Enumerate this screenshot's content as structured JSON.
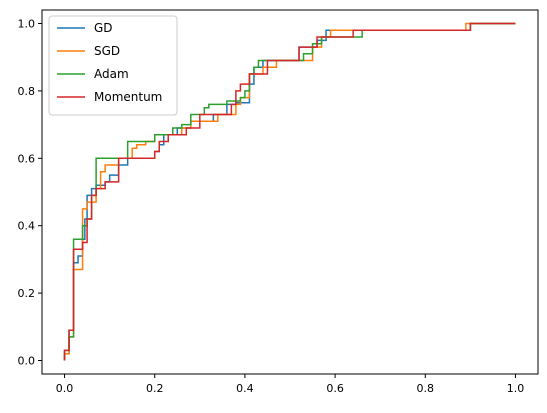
{
  "chart_data": {
    "type": "line",
    "step": true,
    "title": "",
    "xlabel": "",
    "ylabel": "",
    "xlim": [
      -0.05,
      1.05
    ],
    "ylim": [
      -0.04,
      1.04
    ],
    "xticks": [
      0.0,
      0.2,
      0.4,
      0.6,
      0.8,
      1.0
    ],
    "yticks": [
      0.0,
      0.2,
      0.4,
      0.6,
      0.8,
      1.0
    ],
    "xtick_labels": [
      "0.0",
      "0.2",
      "0.4",
      "0.6",
      "0.8",
      "1.0"
    ],
    "ytick_labels": [
      "0.0",
      "0.2",
      "0.4",
      "0.6",
      "0.8",
      "1.0"
    ],
    "grid": false,
    "legend_position": "top-left",
    "series": [
      {
        "name": "GD",
        "color": "#1f77b4",
        "points": [
          [
            0,
            0
          ],
          [
            0,
            0.02
          ],
          [
            0.01,
            0.02
          ],
          [
            0.01,
            0.09
          ],
          [
            0.02,
            0.09
          ],
          [
            0.02,
            0.29
          ],
          [
            0.03,
            0.29
          ],
          [
            0.03,
            0.31
          ],
          [
            0.04,
            0.31
          ],
          [
            0.04,
            0.36
          ],
          [
            0.045,
            0.36
          ],
          [
            0.045,
            0.42
          ],
          [
            0.05,
            0.42
          ],
          [
            0.05,
            0.49
          ],
          [
            0.06,
            0.49
          ],
          [
            0.06,
            0.51
          ],
          [
            0.07,
            0.51
          ],
          [
            0.07,
            0.52
          ],
          [
            0.09,
            0.52
          ],
          [
            0.09,
            0.53
          ],
          [
            0.1,
            0.53
          ],
          [
            0.1,
            0.55
          ],
          [
            0.12,
            0.55
          ],
          [
            0.12,
            0.58
          ],
          [
            0.14,
            0.58
          ],
          [
            0.14,
            0.6
          ],
          [
            0.2,
            0.6
          ],
          [
            0.2,
            0.62
          ],
          [
            0.21,
            0.62
          ],
          [
            0.21,
            0.64
          ],
          [
            0.22,
            0.64
          ],
          [
            0.22,
            0.67
          ],
          [
            0.25,
            0.67
          ],
          [
            0.25,
            0.69
          ],
          [
            0.28,
            0.69
          ],
          [
            0.28,
            0.71
          ],
          [
            0.33,
            0.71
          ],
          [
            0.33,
            0.73
          ],
          [
            0.36,
            0.73
          ],
          [
            0.36,
            0.76
          ],
          [
            0.38,
            0.76
          ],
          [
            0.38,
            0.765
          ],
          [
            0.41,
            0.765
          ],
          [
            0.41,
            0.82
          ],
          [
            0.42,
            0.82
          ],
          [
            0.42,
            0.87
          ],
          [
            0.44,
            0.87
          ],
          [
            0.44,
            0.89
          ],
          [
            0.52,
            0.89
          ],
          [
            0.52,
            0.93
          ],
          [
            0.56,
            0.93
          ],
          [
            0.56,
            0.95
          ],
          [
            0.58,
            0.95
          ],
          [
            0.58,
            0.98
          ],
          [
            0.9,
            0.98
          ],
          [
            0.9,
            1.0
          ],
          [
            1.0,
            1.0
          ]
        ]
      },
      {
        "name": "SGD",
        "color": "#ff7f0e",
        "points": [
          [
            0,
            0
          ],
          [
            0,
            0.02
          ],
          [
            0.01,
            0.02
          ],
          [
            0.01,
            0.07
          ],
          [
            0.02,
            0.07
          ],
          [
            0.02,
            0.27
          ],
          [
            0.04,
            0.27
          ],
          [
            0.04,
            0.45
          ],
          [
            0.05,
            0.45
          ],
          [
            0.05,
            0.47
          ],
          [
            0.07,
            0.47
          ],
          [
            0.07,
            0.51
          ],
          [
            0.08,
            0.51
          ],
          [
            0.08,
            0.56
          ],
          [
            0.09,
            0.56
          ],
          [
            0.09,
            0.58
          ],
          [
            0.12,
            0.58
          ],
          [
            0.12,
            0.6
          ],
          [
            0.15,
            0.6
          ],
          [
            0.15,
            0.63
          ],
          [
            0.16,
            0.63
          ],
          [
            0.16,
            0.64
          ],
          [
            0.18,
            0.64
          ],
          [
            0.18,
            0.65
          ],
          [
            0.2,
            0.65
          ],
          [
            0.2,
            0.67
          ],
          [
            0.26,
            0.67
          ],
          [
            0.26,
            0.69
          ],
          [
            0.28,
            0.69
          ],
          [
            0.28,
            0.71
          ],
          [
            0.34,
            0.71
          ],
          [
            0.34,
            0.73
          ],
          [
            0.38,
            0.73
          ],
          [
            0.38,
            0.76
          ],
          [
            0.39,
            0.76
          ],
          [
            0.39,
            0.78
          ],
          [
            0.41,
            0.78
          ],
          [
            0.41,
            0.85
          ],
          [
            0.44,
            0.85
          ],
          [
            0.44,
            0.87
          ],
          [
            0.47,
            0.87
          ],
          [
            0.47,
            0.89
          ],
          [
            0.55,
            0.89
          ],
          [
            0.55,
            0.93
          ],
          [
            0.57,
            0.93
          ],
          [
            0.57,
            0.96
          ],
          [
            0.59,
            0.96
          ],
          [
            0.59,
            0.98
          ],
          [
            0.89,
            0.98
          ],
          [
            0.89,
            1.0
          ],
          [
            1.0,
            1.0
          ]
        ]
      },
      {
        "name": "Adam",
        "color": "#2ca02c",
        "points": [
          [
            0,
            0
          ],
          [
            0,
            0.03
          ],
          [
            0.01,
            0.03
          ],
          [
            0.01,
            0.07
          ],
          [
            0.02,
            0.07
          ],
          [
            0.02,
            0.36
          ],
          [
            0.04,
            0.36
          ],
          [
            0.04,
            0.4
          ],
          [
            0.05,
            0.4
          ],
          [
            0.05,
            0.42
          ],
          [
            0.06,
            0.42
          ],
          [
            0.06,
            0.49
          ],
          [
            0.07,
            0.49
          ],
          [
            0.07,
            0.51
          ],
          [
            0.07,
            0.51
          ],
          [
            0.07,
            0.6
          ],
          [
            0.14,
            0.6
          ],
          [
            0.14,
            0.65
          ],
          [
            0.2,
            0.65
          ],
          [
            0.2,
            0.67
          ],
          [
            0.24,
            0.67
          ],
          [
            0.24,
            0.69
          ],
          [
            0.26,
            0.69
          ],
          [
            0.26,
            0.7
          ],
          [
            0.28,
            0.7
          ],
          [
            0.28,
            0.73
          ],
          [
            0.31,
            0.73
          ],
          [
            0.31,
            0.75
          ],
          [
            0.32,
            0.75
          ],
          [
            0.32,
            0.76
          ],
          [
            0.36,
            0.76
          ],
          [
            0.36,
            0.77
          ],
          [
            0.39,
            0.77
          ],
          [
            0.39,
            0.78
          ],
          [
            0.4,
            0.78
          ],
          [
            0.4,
            0.8
          ],
          [
            0.41,
            0.8
          ],
          [
            0.41,
            0.85
          ],
          [
            0.42,
            0.85
          ],
          [
            0.42,
            0.87
          ],
          [
            0.43,
            0.87
          ],
          [
            0.43,
            0.89
          ],
          [
            0.53,
            0.89
          ],
          [
            0.53,
            0.91
          ],
          [
            0.55,
            0.91
          ],
          [
            0.55,
            0.94
          ],
          [
            0.57,
            0.94
          ],
          [
            0.57,
            0.96
          ],
          [
            0.66,
            0.96
          ],
          [
            0.66,
            0.98
          ],
          [
            0.9,
            0.98
          ],
          [
            0.9,
            1.0
          ],
          [
            1.0,
            1.0
          ]
        ]
      },
      {
        "name": "Momentum",
        "color": "#d62728",
        "points": [
          [
            0,
            0
          ],
          [
            0,
            0.03
          ],
          [
            0.01,
            0.03
          ],
          [
            0.01,
            0.09
          ],
          [
            0.02,
            0.09
          ],
          [
            0.02,
            0.33
          ],
          [
            0.04,
            0.33
          ],
          [
            0.04,
            0.35
          ],
          [
            0.05,
            0.35
          ],
          [
            0.05,
            0.42
          ],
          [
            0.06,
            0.42
          ],
          [
            0.06,
            0.49
          ],
          [
            0.07,
            0.49
          ],
          [
            0.07,
            0.51
          ],
          [
            0.09,
            0.51
          ],
          [
            0.09,
            0.53
          ],
          [
            0.12,
            0.53
          ],
          [
            0.12,
            0.6
          ],
          [
            0.2,
            0.6
          ],
          [
            0.2,
            0.62
          ],
          [
            0.21,
            0.62
          ],
          [
            0.21,
            0.65
          ],
          [
            0.23,
            0.65
          ],
          [
            0.23,
            0.67
          ],
          [
            0.27,
            0.67
          ],
          [
            0.27,
            0.69
          ],
          [
            0.3,
            0.69
          ],
          [
            0.3,
            0.73
          ],
          [
            0.37,
            0.73
          ],
          [
            0.37,
            0.76
          ],
          [
            0.38,
            0.76
          ],
          [
            0.38,
            0.8
          ],
          [
            0.39,
            0.8
          ],
          [
            0.39,
            0.82
          ],
          [
            0.41,
            0.82
          ],
          [
            0.41,
            0.85
          ],
          [
            0.45,
            0.85
          ],
          [
            0.45,
            0.89
          ],
          [
            0.52,
            0.89
          ],
          [
            0.52,
            0.93
          ],
          [
            0.56,
            0.93
          ],
          [
            0.56,
            0.96
          ],
          [
            0.64,
            0.96
          ],
          [
            0.64,
            0.98
          ],
          [
            0.9,
            0.98
          ],
          [
            0.9,
            1.0
          ],
          [
            1.0,
            1.0
          ]
        ]
      }
    ]
  }
}
